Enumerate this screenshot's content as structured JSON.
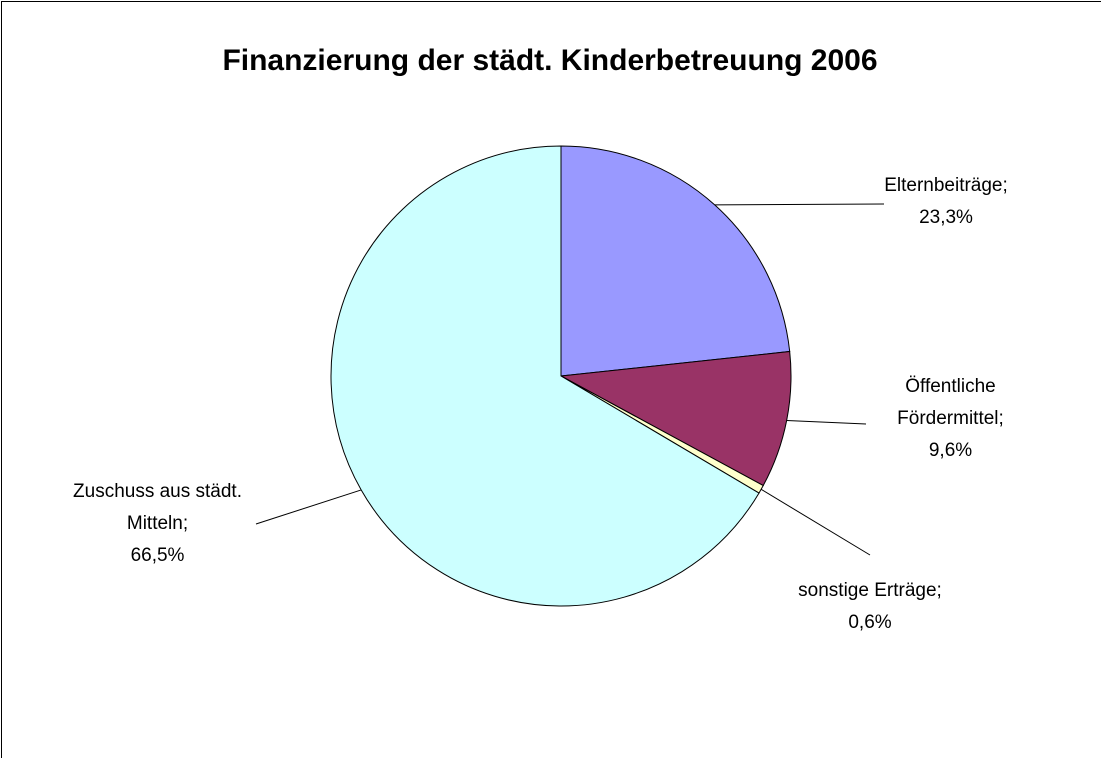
{
  "chart_data": {
    "type": "pie",
    "title": "Finanzierung der städt. Kinderbetreuung 2006",
    "categories": [
      "Elternbeiträge;",
      "Öffentliche Fördermittel;",
      "sonstige Erträge;",
      "Zuschuss aus städt. Mitteln;"
    ],
    "values": [
      23.3,
      9.6,
      0.6,
      66.5
    ],
    "value_labels": [
      "23,3%",
      "9,6%",
      "0,6%",
      "66,5%"
    ],
    "colors": [
      "#9999ff",
      "#993366",
      "#ffffcc",
      "#ccffff"
    ]
  }
}
